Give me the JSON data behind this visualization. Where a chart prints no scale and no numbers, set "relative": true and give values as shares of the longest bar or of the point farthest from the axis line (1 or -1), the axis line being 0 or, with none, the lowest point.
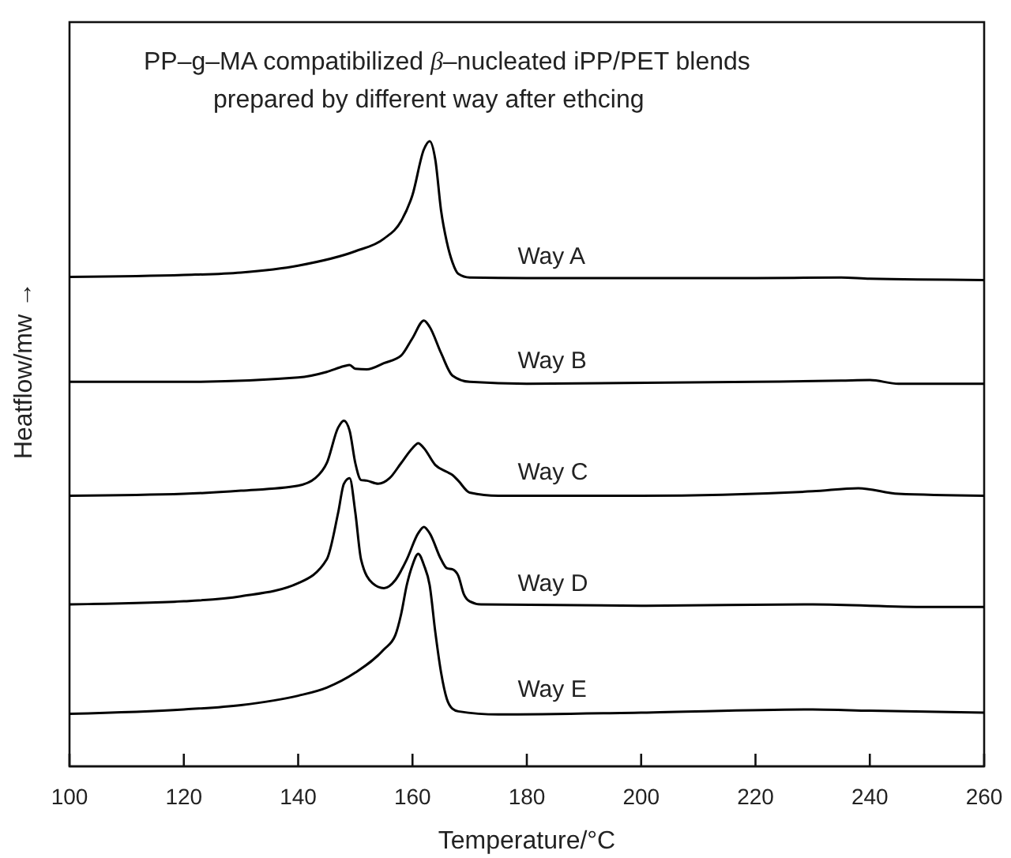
{
  "chart_data": {
    "type": "line",
    "title": "PP–g–MA compatibilized β–nucleated iPP/PET blends",
    "subtitle": "prepared by different way after ethcing",
    "xlabel": "Temperature/°C",
    "ylabel": "Heatflow/mw →",
    "relative": true,
    "xlim": [
      100,
      260
    ],
    "xticks": [
      100,
      120,
      140,
      160,
      180,
      200,
      220,
      240,
      260
    ],
    "grid": false,
    "marker": "none",
    "line_style": "solid",
    "series": [
      {
        "name": "Way A",
        "color": "#000000",
        "x": [
          100,
          120,
          130,
          140,
          150,
          155,
          158,
          160,
          162,
          163,
          164,
          165,
          166,
          167,
          168,
          170,
          180,
          200,
          220,
          235,
          240,
          260
        ],
        "values": [
          0.783,
          0.786,
          0.79,
          0.801,
          0.824,
          0.844,
          0.872,
          0.914,
          0.987,
          1,
          0.97,
          0.889,
          0.839,
          0.806,
          0.788,
          0.782,
          0.781,
          0.781,
          0.781,
          0.782,
          0.78,
          0.778
        ]
      },
      {
        "name": "Way B",
        "color": "#000000",
        "x": [
          100,
          120,
          140,
          145,
          148,
          149,
          150,
          152,
          155,
          158,
          160,
          162,
          163,
          165,
          167,
          170,
          180,
          220,
          235,
          240,
          245,
          260
        ],
        "values": [
          0.615,
          0.615,
          0.622,
          0.631,
          0.64,
          0.642,
          0.636,
          0.635,
          0.645,
          0.657,
          0.685,
          0.713,
          0.703,
          0.661,
          0.625,
          0.615,
          0.612,
          0.615,
          0.617,
          0.618,
          0.612,
          0.612
        ]
      },
      {
        "name": "Way C",
        "color": "#000000",
        "x": [
          100,
          120,
          130,
          140,
          143,
          145,
          147,
          148,
          149,
          150,
          151,
          152,
          154,
          156,
          158,
          160,
          161,
          162,
          164,
          166,
          167,
          168,
          170,
          175,
          200,
          230,
          238,
          245,
          260
        ],
        "values": [
          0.433,
          0.436,
          0.441,
          0.449,
          0.461,
          0.485,
          0.542,
          0.553,
          0.537,
          0.485,
          0.458,
          0.457,
          0.452,
          0.461,
          0.485,
          0.509,
          0.517,
          0.509,
          0.482,
          0.471,
          0.466,
          0.457,
          0.438,
          0.433,
          0.433,
          0.44,
          0.445,
          0.436,
          0.433
        ]
      },
      {
        "name": "Way D",
        "color": "#000000",
        "x": [
          100,
          120,
          130,
          140,
          145,
          147,
          148,
          149,
          150,
          151,
          153,
          155,
          157,
          159,
          161,
          162,
          163,
          165,
          166,
          167,
          168,
          169,
          170,
          172,
          200,
          230,
          250,
          260
        ],
        "values": [
          0.259,
          0.264,
          0.272,
          0.293,
          0.331,
          0.406,
          0.452,
          0.461,
          0.406,
          0.331,
          0.293,
          0.285,
          0.298,
          0.331,
          0.373,
          0.383,
          0.373,
          0.331,
          0.317,
          0.315,
          0.305,
          0.275,
          0.264,
          0.259,
          0.257,
          0.259,
          0.255,
          0.255
        ]
      },
      {
        "name": "Way E",
        "color": "#000000",
        "x": [
          100,
          120,
          130,
          140,
          145,
          150,
          155,
          157,
          158,
          159,
          160,
          161,
          162,
          163,
          164,
          165,
          166,
          167,
          168,
          175,
          200,
          230,
          240,
          260
        ],
        "values": [
          0.084,
          0.091,
          0.098,
          0.113,
          0.126,
          0.15,
          0.187,
          0.21,
          0.243,
          0.29,
          0.322,
          0.34,
          0.322,
          0.29,
          0.214,
          0.15,
          0.108,
          0.092,
          0.088,
          0.083,
          0.086,
          0.091,
          0.089,
          0.086
        ]
      }
    ]
  }
}
